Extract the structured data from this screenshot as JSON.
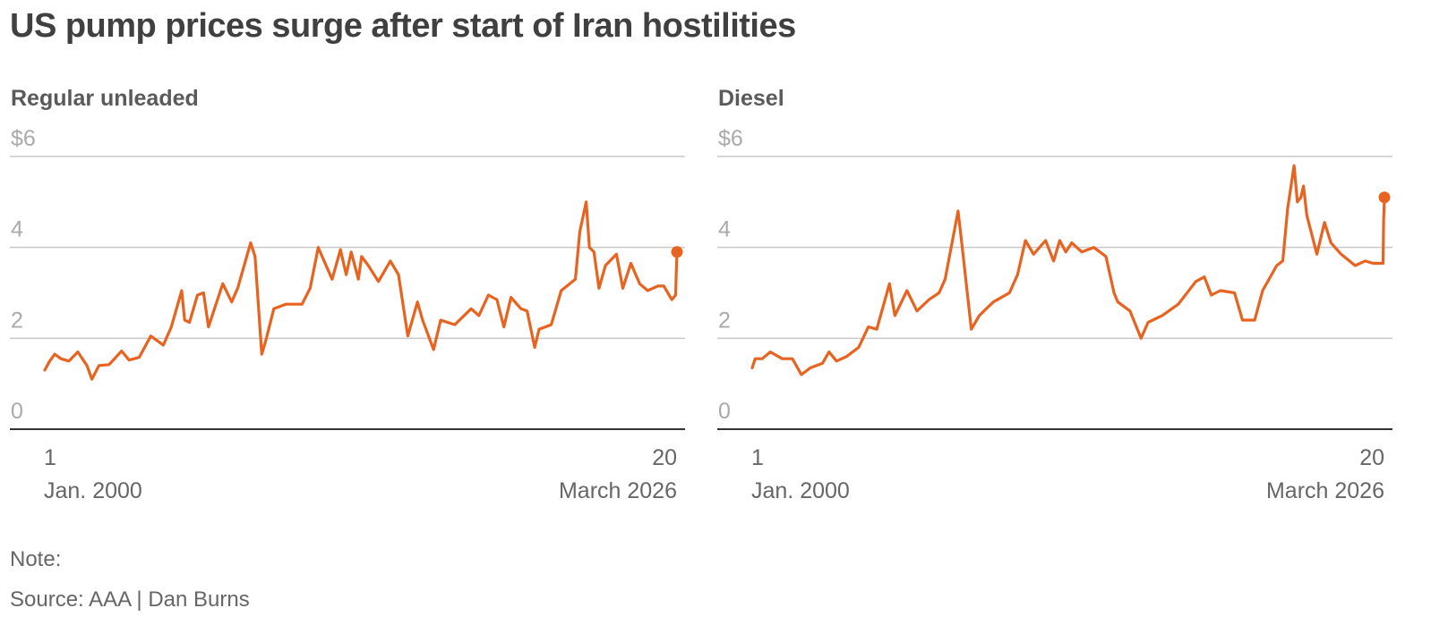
{
  "title": "US pump prices surge after start of Iran hostilities",
  "chart_data": [
    {
      "type": "line",
      "subtitle": "Regular unleaded",
      "xlabel": "",
      "ylabel": "",
      "ylim": [
        0,
        6
      ],
      "yticks": [
        {
          "value": 0,
          "label": "0"
        },
        {
          "value": 2,
          "label": "2"
        },
        {
          "value": 4,
          "label": "4"
        },
        {
          "value": 6,
          "label": "$6"
        }
      ],
      "xticks": [
        {
          "x": "2000-01-01",
          "label": "1",
          "sublabel": "Jan. 2000"
        },
        {
          "x": "2026-03-20",
          "label": "20",
          "sublabel": "March 2026"
        }
      ],
      "x_range": [
        "2000-01-01",
        "2026-03-20"
      ],
      "grid": true,
      "line_color": "#e8631f",
      "series": [
        {
          "points": [
            [
              "2000-01-01",
              1.3
            ],
            [
              "2000-03-15",
              1.5
            ],
            [
              "2000-06-01",
              1.65
            ],
            [
              "2000-09-01",
              1.55
            ],
            [
              "2001-01-01",
              1.5
            ],
            [
              "2001-05-15",
              1.7
            ],
            [
              "2001-10-01",
              1.4
            ],
            [
              "2001-12-15",
              1.1
            ],
            [
              "2002-04-01",
              1.4
            ],
            [
              "2002-09-01",
              1.42
            ],
            [
              "2003-03-10",
              1.72
            ],
            [
              "2003-07-01",
              1.52
            ],
            [
              "2003-12-01",
              1.58
            ],
            [
              "2004-05-25",
              2.05
            ],
            [
              "2004-12-01",
              1.85
            ],
            [
              "2005-04-01",
              2.25
            ],
            [
              "2005-09-05",
              3.05
            ],
            [
              "2005-10-20",
              2.4
            ],
            [
              "2006-01-01",
              2.35
            ],
            [
              "2006-05-01",
              2.95
            ],
            [
              "2006-08-01",
              3.0
            ],
            [
              "2006-10-15",
              2.25
            ],
            [
              "2007-05-20",
              3.2
            ],
            [
              "2007-10-01",
              2.8
            ],
            [
              "2008-01-01",
              3.1
            ],
            [
              "2008-07-15",
              4.1
            ],
            [
              "2008-09-20",
              3.8
            ],
            [
              "2008-12-30",
              1.65
            ],
            [
              "2009-03-01",
              1.95
            ],
            [
              "2009-07-01",
              2.65
            ],
            [
              "2010-01-01",
              2.75
            ],
            [
              "2010-09-01",
              2.75
            ],
            [
              "2011-01-01",
              3.1
            ],
            [
              "2011-05-05",
              4.0
            ],
            [
              "2011-08-01",
              3.7
            ],
            [
              "2011-12-01",
              3.3
            ],
            [
              "2012-04-05",
              3.95
            ],
            [
              "2012-07-01",
              3.4
            ],
            [
              "2012-09-15",
              3.9
            ],
            [
              "2013-01-01",
              3.3
            ],
            [
              "2013-02-20",
              3.8
            ],
            [
              "2013-06-01",
              3.6
            ],
            [
              "2013-11-01",
              3.25
            ],
            [
              "2014-05-01",
              3.7
            ],
            [
              "2014-09-01",
              3.4
            ],
            [
              "2015-01-20",
              2.05
            ],
            [
              "2015-06-15",
              2.8
            ],
            [
              "2015-09-01",
              2.4
            ],
            [
              "2016-02-15",
              1.75
            ],
            [
              "2016-06-01",
              2.4
            ],
            [
              "2017-01-01",
              2.3
            ],
            [
              "2017-09-05",
              2.65
            ],
            [
              "2018-01-01",
              2.5
            ],
            [
              "2018-05-25",
              2.95
            ],
            [
              "2018-10-01",
              2.85
            ],
            [
              "2019-01-15",
              2.25
            ],
            [
              "2019-05-01",
              2.9
            ],
            [
              "2019-10-01",
              2.65
            ],
            [
              "2020-01-01",
              2.6
            ],
            [
              "2020-04-25",
              1.8
            ],
            [
              "2020-07-01",
              2.2
            ],
            [
              "2021-01-01",
              2.3
            ],
            [
              "2021-06-01",
              3.05
            ],
            [
              "2022-01-01",
              3.3
            ],
            [
              "2022-03-10",
              4.35
            ],
            [
              "2022-06-14",
              5.0
            ],
            [
              "2022-08-01",
              4.0
            ],
            [
              "2022-10-10",
              3.9
            ],
            [
              "2022-12-25",
              3.1
            ],
            [
              "2023-04-01",
              3.6
            ],
            [
              "2023-09-15",
              3.85
            ],
            [
              "2023-12-20",
              3.1
            ],
            [
              "2024-04-20",
              3.65
            ],
            [
              "2024-09-01",
              3.2
            ],
            [
              "2025-01-01",
              3.05
            ],
            [
              "2025-06-01",
              3.15
            ],
            [
              "2025-09-01",
              3.15
            ],
            [
              "2026-01-01",
              2.85
            ],
            [
              "2026-02-27",
              2.95
            ],
            [
              "2026-03-09",
              3.45
            ],
            [
              "2026-03-20",
              3.9
            ]
          ]
        }
      ]
    },
    {
      "type": "line",
      "subtitle": "Diesel",
      "xlabel": "",
      "ylabel": "",
      "ylim": [
        0,
        6
      ],
      "yticks": [
        {
          "value": 0,
          "label": "0"
        },
        {
          "value": 2,
          "label": "2"
        },
        {
          "value": 4,
          "label": "4"
        },
        {
          "value": 6,
          "label": "$6"
        }
      ],
      "xticks": [
        {
          "x": "2000-01-01",
          "label": "1",
          "sublabel": "Jan. 2000"
        },
        {
          "x": "2026-03-20",
          "label": "20",
          "sublabel": "March 2026"
        }
      ],
      "x_range": [
        "2000-01-01",
        "2026-03-20"
      ],
      "grid": true,
      "line_color": "#e8631f",
      "series": [
        {
          "points": [
            [
              "2000-01-01",
              1.35
            ],
            [
              "2000-02-15",
              1.55
            ],
            [
              "2000-06-01",
              1.55
            ],
            [
              "2000-10-01",
              1.7
            ],
            [
              "2001-04-01",
              1.55
            ],
            [
              "2001-09-01",
              1.55
            ],
            [
              "2002-01-15",
              1.2
            ],
            [
              "2002-06-01",
              1.35
            ],
            [
              "2002-12-01",
              1.45
            ],
            [
              "2003-03-10",
              1.7
            ],
            [
              "2003-07-01",
              1.5
            ],
            [
              "2003-12-01",
              1.6
            ],
            [
              "2004-06-01",
              1.8
            ],
            [
              "2004-10-25",
              2.25
            ],
            [
              "2005-03-01",
              2.2
            ],
            [
              "2005-09-10",
              3.2
            ],
            [
              "2005-12-01",
              2.5
            ],
            [
              "2006-06-01",
              3.05
            ],
            [
              "2006-11-01",
              2.6
            ],
            [
              "2007-05-01",
              2.85
            ],
            [
              "2007-10-01",
              3.0
            ],
            [
              "2008-01-01",
              3.3
            ],
            [
              "2008-07-15",
              4.8
            ],
            [
              "2008-09-01",
              4.2
            ],
            [
              "2009-02-01",
              2.2
            ],
            [
              "2009-06-01",
              2.5
            ],
            [
              "2010-01-01",
              2.8
            ],
            [
              "2010-09-01",
              3.0
            ],
            [
              "2011-01-01",
              3.4
            ],
            [
              "2011-05-01",
              4.15
            ],
            [
              "2011-09-01",
              3.85
            ],
            [
              "2012-03-01",
              4.15
            ],
            [
              "2012-07-01",
              3.7
            ],
            [
              "2012-10-01",
              4.15
            ],
            [
              "2013-01-01",
              3.9
            ],
            [
              "2013-04-01",
              4.1
            ],
            [
              "2013-09-01",
              3.9
            ],
            [
              "2014-03-01",
              4.0
            ],
            [
              "2014-09-01",
              3.8
            ],
            [
              "2015-01-01",
              3.0
            ],
            [
              "2015-03-01",
              2.8
            ],
            [
              "2015-09-01",
              2.6
            ],
            [
              "2016-02-15",
              2.0
            ],
            [
              "2016-06-01",
              2.35
            ],
            [
              "2017-01-01",
              2.5
            ],
            [
              "2017-09-01",
              2.75
            ],
            [
              "2018-05-25",
              3.25
            ],
            [
              "2018-10-01",
              3.35
            ],
            [
              "2019-01-15",
              2.95
            ],
            [
              "2019-06-01",
              3.05
            ],
            [
              "2020-01-01",
              3.0
            ],
            [
              "2020-05-01",
              2.4
            ],
            [
              "2020-11-01",
              2.4
            ],
            [
              "2021-03-01",
              3.05
            ],
            [
              "2021-10-01",
              3.6
            ],
            [
              "2022-01-01",
              3.7
            ],
            [
              "2022-03-15",
              4.85
            ],
            [
              "2022-06-20",
              5.8
            ],
            [
              "2022-08-10",
              5.0
            ],
            [
              "2022-10-01",
              5.1
            ],
            [
              "2022-11-10",
              5.35
            ],
            [
              "2023-01-01",
              4.7
            ],
            [
              "2023-06-01",
              3.85
            ],
            [
              "2023-09-25",
              4.55
            ],
            [
              "2024-01-01",
              4.1
            ],
            [
              "2024-06-01",
              3.85
            ],
            [
              "2025-01-01",
              3.6
            ],
            [
              "2025-06-01",
              3.7
            ],
            [
              "2025-10-01",
              3.65
            ],
            [
              "2026-02-27",
              3.65
            ],
            [
              "2026-03-08",
              4.6
            ],
            [
              "2026-03-20",
              5.1
            ]
          ]
        }
      ]
    }
  ],
  "footer": {
    "note": "Note:",
    "source": "Source: AAA | Dan Burns"
  }
}
